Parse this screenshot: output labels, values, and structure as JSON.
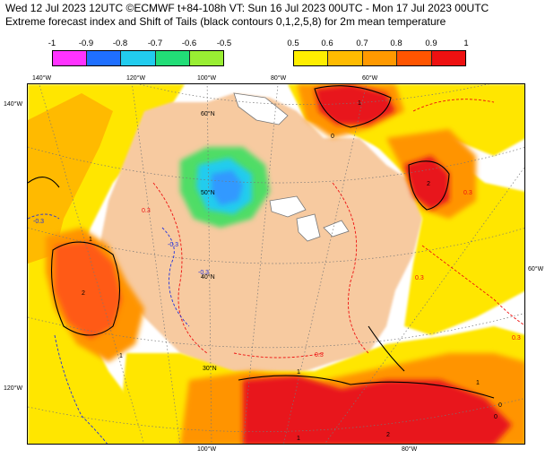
{
  "header": {
    "line1": "Wed 12 Jul 2023 12UTC ©ECMWF t+84-108h  VT: Sun 16 Jul 2023 00UTC - Mon 17 Jul 2023 00UTC",
    "line2": "Extreme forecast index and Shift of Tails (black contours 0,1,2,5,8) for 2m mean temperature"
  },
  "colorbar_negative": {
    "labels": [
      "-1",
      "-0.9",
      "-0.8",
      "-0.7",
      "-0.6",
      "-0.5"
    ],
    "colors": [
      "#ff33ff",
      "#1f6fff",
      "#22ccee",
      "#22dd77",
      "#99ee33"
    ]
  },
  "colorbar_positive": {
    "labels": [
      "0.5",
      "0.6",
      "0.7",
      "0.8",
      "0.9",
      "1"
    ],
    "colors": [
      "#ffee00",
      "#ffbb00",
      "#ff9900",
      "#ff5500",
      "#ee1111"
    ]
  },
  "map_colors": {
    "land": "#f7caa0",
    "efi_yellow": "#ffe600",
    "efi_orange_light": "#ffba00",
    "efi_orange": "#ff9400",
    "efi_red_orange": "#ff5a14",
    "efi_red": "#e8141e",
    "efi_green": "#50dd66",
    "efi_cyan": "#22ccee",
    "efi_blue": "#3399ff",
    "lakes": "#ffffff",
    "contour_black": "#000000",
    "contour_red": "#ee1111",
    "contour_blue": "#2233dd"
  },
  "lat_lon_labels": {
    "top": [
      "140°W",
      "120°W",
      "100°W",
      "80°W",
      "60°W"
    ],
    "left_top": "140°W",
    "left_bottom": "120°W",
    "right": "60°W",
    "bottom": [
      "100°W",
      "80°W"
    ],
    "interior": [
      "60°N",
      "50°N",
      "40°N",
      "30°N"
    ]
  },
  "contour_labels": {
    "red": [
      "0.3",
      "0.3",
      "0.3",
      "0.3",
      "0.3"
    ],
    "blue": [
      "-0.3",
      "-0.3",
      "-0.3"
    ],
    "black": [
      "1",
      "0",
      "1",
      "2",
      "0",
      "1",
      "2",
      "1",
      "2",
      "0",
      "1",
      "1"
    ]
  }
}
